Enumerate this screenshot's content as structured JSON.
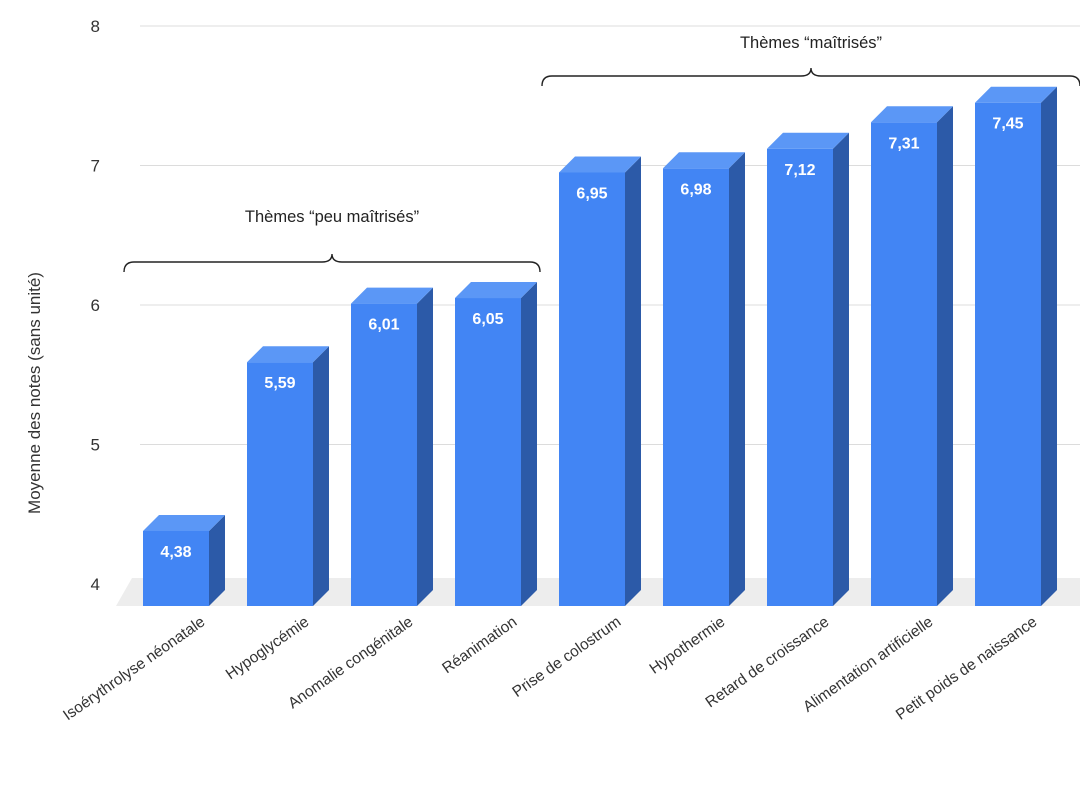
{
  "chart_data": {
    "type": "bar",
    "style": "3d",
    "ylabel": "Moyenne des notes (sans unité)",
    "xlabel": "",
    "ylim": [
      4,
      8
    ],
    "yticks": [
      "4",
      "5",
      "6",
      "7",
      "8"
    ],
    "grid": true,
    "categories": [
      "Isoérythrolyse néonatale",
      "Hypoglycémie",
      "Anomalie congénitale",
      "Réanimation",
      "Prise de colostrum",
      "Hypothermie",
      "Retard de croissance",
      "Alimentation artificielle",
      "Petit poids de naissance"
    ],
    "values": [
      4.38,
      5.59,
      6.01,
      6.05,
      6.95,
      6.98,
      7.12,
      7.31,
      7.45
    ],
    "value_labels": [
      "4,38",
      "5,59",
      "6,01",
      "6,05",
      "6,95",
      "6,98",
      "7,12",
      "7,31",
      "7,45"
    ],
    "colors": {
      "front": "#4285f4",
      "side": "#2c5aa8",
      "top": "#5b97f6",
      "floor": "#ededed"
    },
    "annotations": [
      {
        "text": "Thèmes “peu maîtrisés”",
        "from_category": 0,
        "to_category": 3
      },
      {
        "text": "Thèmes “maîtrisés”",
        "from_category": 4,
        "to_category": 8
      }
    ]
  }
}
